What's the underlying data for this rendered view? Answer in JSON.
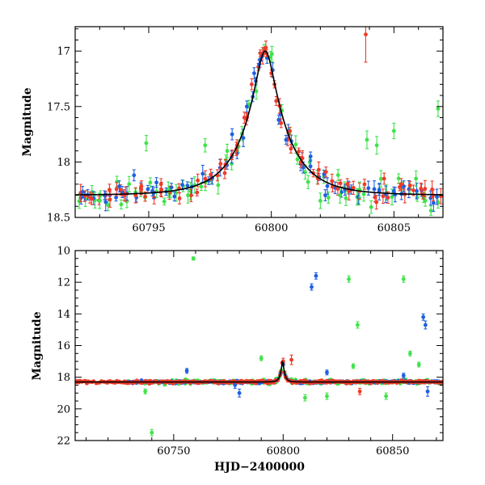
{
  "figure": {
    "xlabel": "HJD−2400000"
  },
  "colors": {
    "blue": "#1f5fe0",
    "red": "#f03a28",
    "green": "#3fe34a",
    "model": "#000000"
  },
  "chart_data": [
    {
      "type": "scatter",
      "title": "",
      "xlabel": "",
      "ylabel": "Magnitude",
      "xlim": [
        60792.0,
        60807.0
      ],
      "ylim": [
        18.5,
        16.78
      ],
      "y_inverted": true,
      "x_ticks": [
        60795,
        60800,
        60805
      ],
      "x_tick_labels": [
        "60795",
        "60800",
        "60805"
      ],
      "y_ticks": [
        17.0,
        17.5,
        18.0,
        18.5
      ],
      "y_tick_labels": [
        "17",
        "17.5",
        "18",
        "18.5"
      ],
      "grid": false,
      "legend": "none",
      "model_curve": {
        "shape": "single-lens microlensing (Paczynski)",
        "t0": 60799.75,
        "tE": 1.8,
        "u0": 0.2,
        "baseline_mag": 18.3,
        "peak_mag": 17.0
      },
      "series": [
        {
          "color": "blue",
          "points": [
            [
              60792.3,
              18.27,
              0.05
            ],
            [
              60793.2,
              18.3,
              0.04
            ],
            [
              60793.8,
              18.22,
              0.05
            ],
            [
              60794.4,
              18.12,
              0.05
            ],
            [
              60795.2,
              18.28,
              0.05
            ],
            [
              60798.4,
              17.75,
              0.05
            ],
            [
              60799.0,
              17.5,
              0.05
            ],
            [
              60799.3,
              17.2,
              0.05
            ],
            [
              60799.5,
              17.12,
              0.04
            ],
            [
              60799.6,
              17.05,
              0.04
            ],
            [
              60800.3,
              17.62,
              0.04
            ],
            [
              60800.6,
              17.8,
              0.04
            ],
            [
              60801.3,
              18.05,
              0.05
            ],
            [
              60801.6,
              17.95,
              0.04
            ],
            [
              60802.2,
              18.3,
              0.05
            ],
            [
              60803.0,
              18.25,
              0.05
            ],
            [
              60804.4,
              18.25,
              0.05
            ],
            [
              60805.4,
              18.22,
              0.05
            ]
          ]
        },
        {
          "color": "red",
          "points": [
            [
              60792.6,
              18.32,
              0.05
            ],
            [
              60793.4,
              18.25,
              0.05
            ],
            [
              60794.0,
              18.3,
              0.05
            ],
            [
              60794.7,
              18.22,
              0.05
            ],
            [
              60795.5,
              18.2,
              0.05
            ],
            [
              60797.8,
              18.12,
              0.05
            ],
            [
              60798.1,
              18.1,
              0.05
            ],
            [
              60798.6,
              17.85,
              0.05
            ],
            [
              60798.9,
              17.6,
              0.05
            ],
            [
              60799.2,
              17.3,
              0.05
            ],
            [
              60799.55,
              17.02,
              0.03
            ],
            [
              60799.7,
              17.0,
              0.03
            ],
            [
              60799.8,
              17.02,
              0.03
            ],
            [
              60800.0,
              17.2,
              0.03
            ],
            [
              60800.2,
              17.45,
              0.04
            ],
            [
              60800.4,
              17.65,
              0.04
            ],
            [
              60800.8,
              17.88,
              0.04
            ],
            [
              60801.2,
              18.0,
              0.05
            ],
            [
              60801.9,
              18.15,
              0.05
            ],
            [
              60802.5,
              18.22,
              0.05
            ],
            [
              60803.1,
              18.2,
              0.05
            ],
            [
              60803.85,
              16.85,
              0.25
            ],
            [
              60804.6,
              18.15,
              0.05
            ],
            [
              60805.3,
              18.2,
              0.05
            ],
            [
              60806.1,
              18.24,
              0.05
            ],
            [
              60806.6,
              18.3,
              0.05
            ]
          ]
        },
        {
          "color": "green",
          "points": [
            [
              60793.0,
              18.35,
              0.07
            ],
            [
              60794.2,
              18.2,
              0.07
            ],
            [
              60794.9,
              17.83,
              0.07
            ],
            [
              60795.8,
              18.25,
              0.07
            ],
            [
              60796.6,
              18.3,
              0.07
            ],
            [
              60797.3,
              17.85,
              0.06
            ],
            [
              60798.2,
              17.9,
              0.06
            ],
            [
              60801.5,
              18.18,
              0.06
            ],
            [
              60802.0,
              18.35,
              0.07
            ],
            [
              60802.8,
              18.3,
              0.07
            ],
            [
              60803.6,
              18.25,
              0.07
            ],
            [
              60803.9,
              17.8,
              0.08
            ],
            [
              60804.3,
              17.85,
              0.08
            ],
            [
              60805.0,
              17.72,
              0.07
            ],
            [
              60805.9,
              18.15,
              0.07
            ],
            [
              60806.8,
              17.52,
              0.07
            ]
          ]
        }
      ]
    },
    {
      "type": "scatter",
      "title": "",
      "xlabel": "HJD−2400000",
      "ylabel": "Magnitude",
      "xlim": [
        60705.0,
        60873.0
      ],
      "ylim": [
        22.0,
        10.0
      ],
      "y_inverted": true,
      "x_ticks": [
        60750,
        60800,
        60850
      ],
      "x_tick_labels": [
        "60750",
        "60800",
        "60850"
      ],
      "y_ticks": [
        10,
        12,
        14,
        16,
        18,
        20,
        22
      ],
      "y_tick_labels": [
        "10",
        "12",
        "14",
        "16",
        "18",
        "20",
        "22"
      ],
      "grid": false,
      "legend": "none",
      "model_curve": {
        "shape": "single-lens microlensing (Paczynski)",
        "t0": 60799.75,
        "tE": 1.8,
        "u0": 0.2,
        "baseline_mag": 18.3,
        "peak_mag": 17.0
      },
      "series": [
        {
          "color": "blue",
          "points": [
            [
              60756,
              17.6,
              0.15
            ],
            [
              60778,
              18.5,
              0.2
            ],
            [
              60780,
              19.0,
              0.25
            ],
            [
              60813,
              12.3,
              0.2
            ],
            [
              60815,
              11.6,
              0.2
            ],
            [
              60820,
              17.7,
              0.15
            ],
            [
              60855,
              17.9,
              0.15
            ],
            [
              60864,
              14.2,
              0.2
            ],
            [
              60865,
              14.7,
              0.25
            ],
            [
              60866,
              18.9,
              0.3
            ]
          ]
        },
        {
          "color": "red",
          "points": [
            [
              60800,
              17.0,
              0.2
            ],
            [
              60803.8,
              16.9,
              0.3
            ],
            [
              60835,
              18.9,
              0.2
            ]
          ]
        },
        {
          "color": "green",
          "points": [
            [
              60737,
              18.9,
              0.15
            ],
            [
              60740,
              21.5,
              0.2
            ],
            [
              60759,
              10.5,
              0.1
            ],
            [
              60790,
              16.8,
              0.15
            ],
            [
              60810,
              19.3,
              0.2
            ],
            [
              60820,
              19.2,
              0.2
            ],
            [
              60830,
              11.8,
              0.2
            ],
            [
              60832,
              17.3,
              0.15
            ],
            [
              60834,
              14.7,
              0.2
            ],
            [
              60847,
              19.2,
              0.2
            ],
            [
              60855,
              11.8,
              0.2
            ],
            [
              60858,
              16.5,
              0.15
            ],
            [
              60862,
              17.2,
              0.15
            ]
          ]
        }
      ]
    }
  ]
}
